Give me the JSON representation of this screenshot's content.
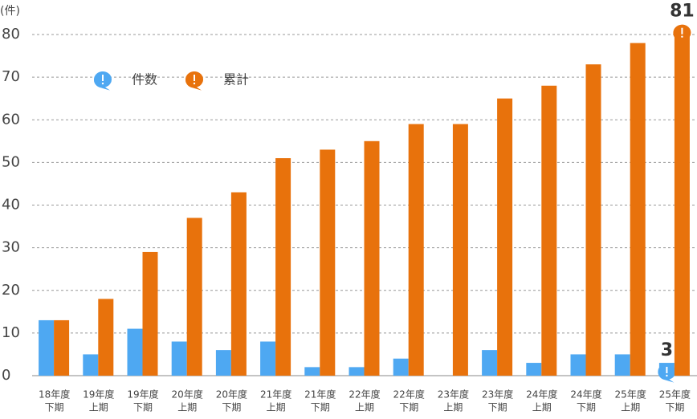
{
  "chart_data": {
    "type": "bar",
    "unit": "(件)",
    "categories": [
      [
        "18年度",
        "下期"
      ],
      [
        "19年度",
        "上期"
      ],
      [
        "19年度",
        "下期"
      ],
      [
        "20年度",
        "上期"
      ],
      [
        "20年度",
        "下期"
      ],
      [
        "21年度",
        "上期"
      ],
      [
        "21年度",
        "下期"
      ],
      [
        "22年度",
        "上期"
      ],
      [
        "22年度",
        "下期"
      ],
      [
        "23年度",
        "上期"
      ],
      [
        "23年度",
        "下期"
      ],
      [
        "24年度",
        "上期"
      ],
      [
        "24年度",
        "下期"
      ],
      [
        "25年度",
        "上期"
      ],
      [
        "25年度",
        "下期"
      ]
    ],
    "series": [
      {
        "name": "件数",
        "color": "#4ea8f2",
        "values": [
          13,
          5,
          11,
          8,
          6,
          8,
          2,
          2,
          4,
          0,
          6,
          3,
          5,
          5,
          3
        ],
        "value_labels": [
          null,
          null,
          null,
          null,
          null,
          null,
          null,
          null,
          null,
          null,
          null,
          null,
          null,
          null,
          "3"
        ]
      },
      {
        "name": "累計",
        "color": "#e8720c",
        "values": [
          13,
          18,
          29,
          37,
          43,
          51,
          53,
          55,
          59,
          59,
          65,
          68,
          73,
          78,
          81
        ],
        "value_labels": [
          null,
          null,
          null,
          null,
          null,
          null,
          null,
          null,
          null,
          null,
          null,
          null,
          null,
          null,
          "81"
        ]
      }
    ],
    "ylim": [
      0,
      80
    ],
    "yticks": [
      0,
      10,
      20,
      30,
      40,
      50,
      60,
      70,
      80
    ],
    "grid": true
  }
}
